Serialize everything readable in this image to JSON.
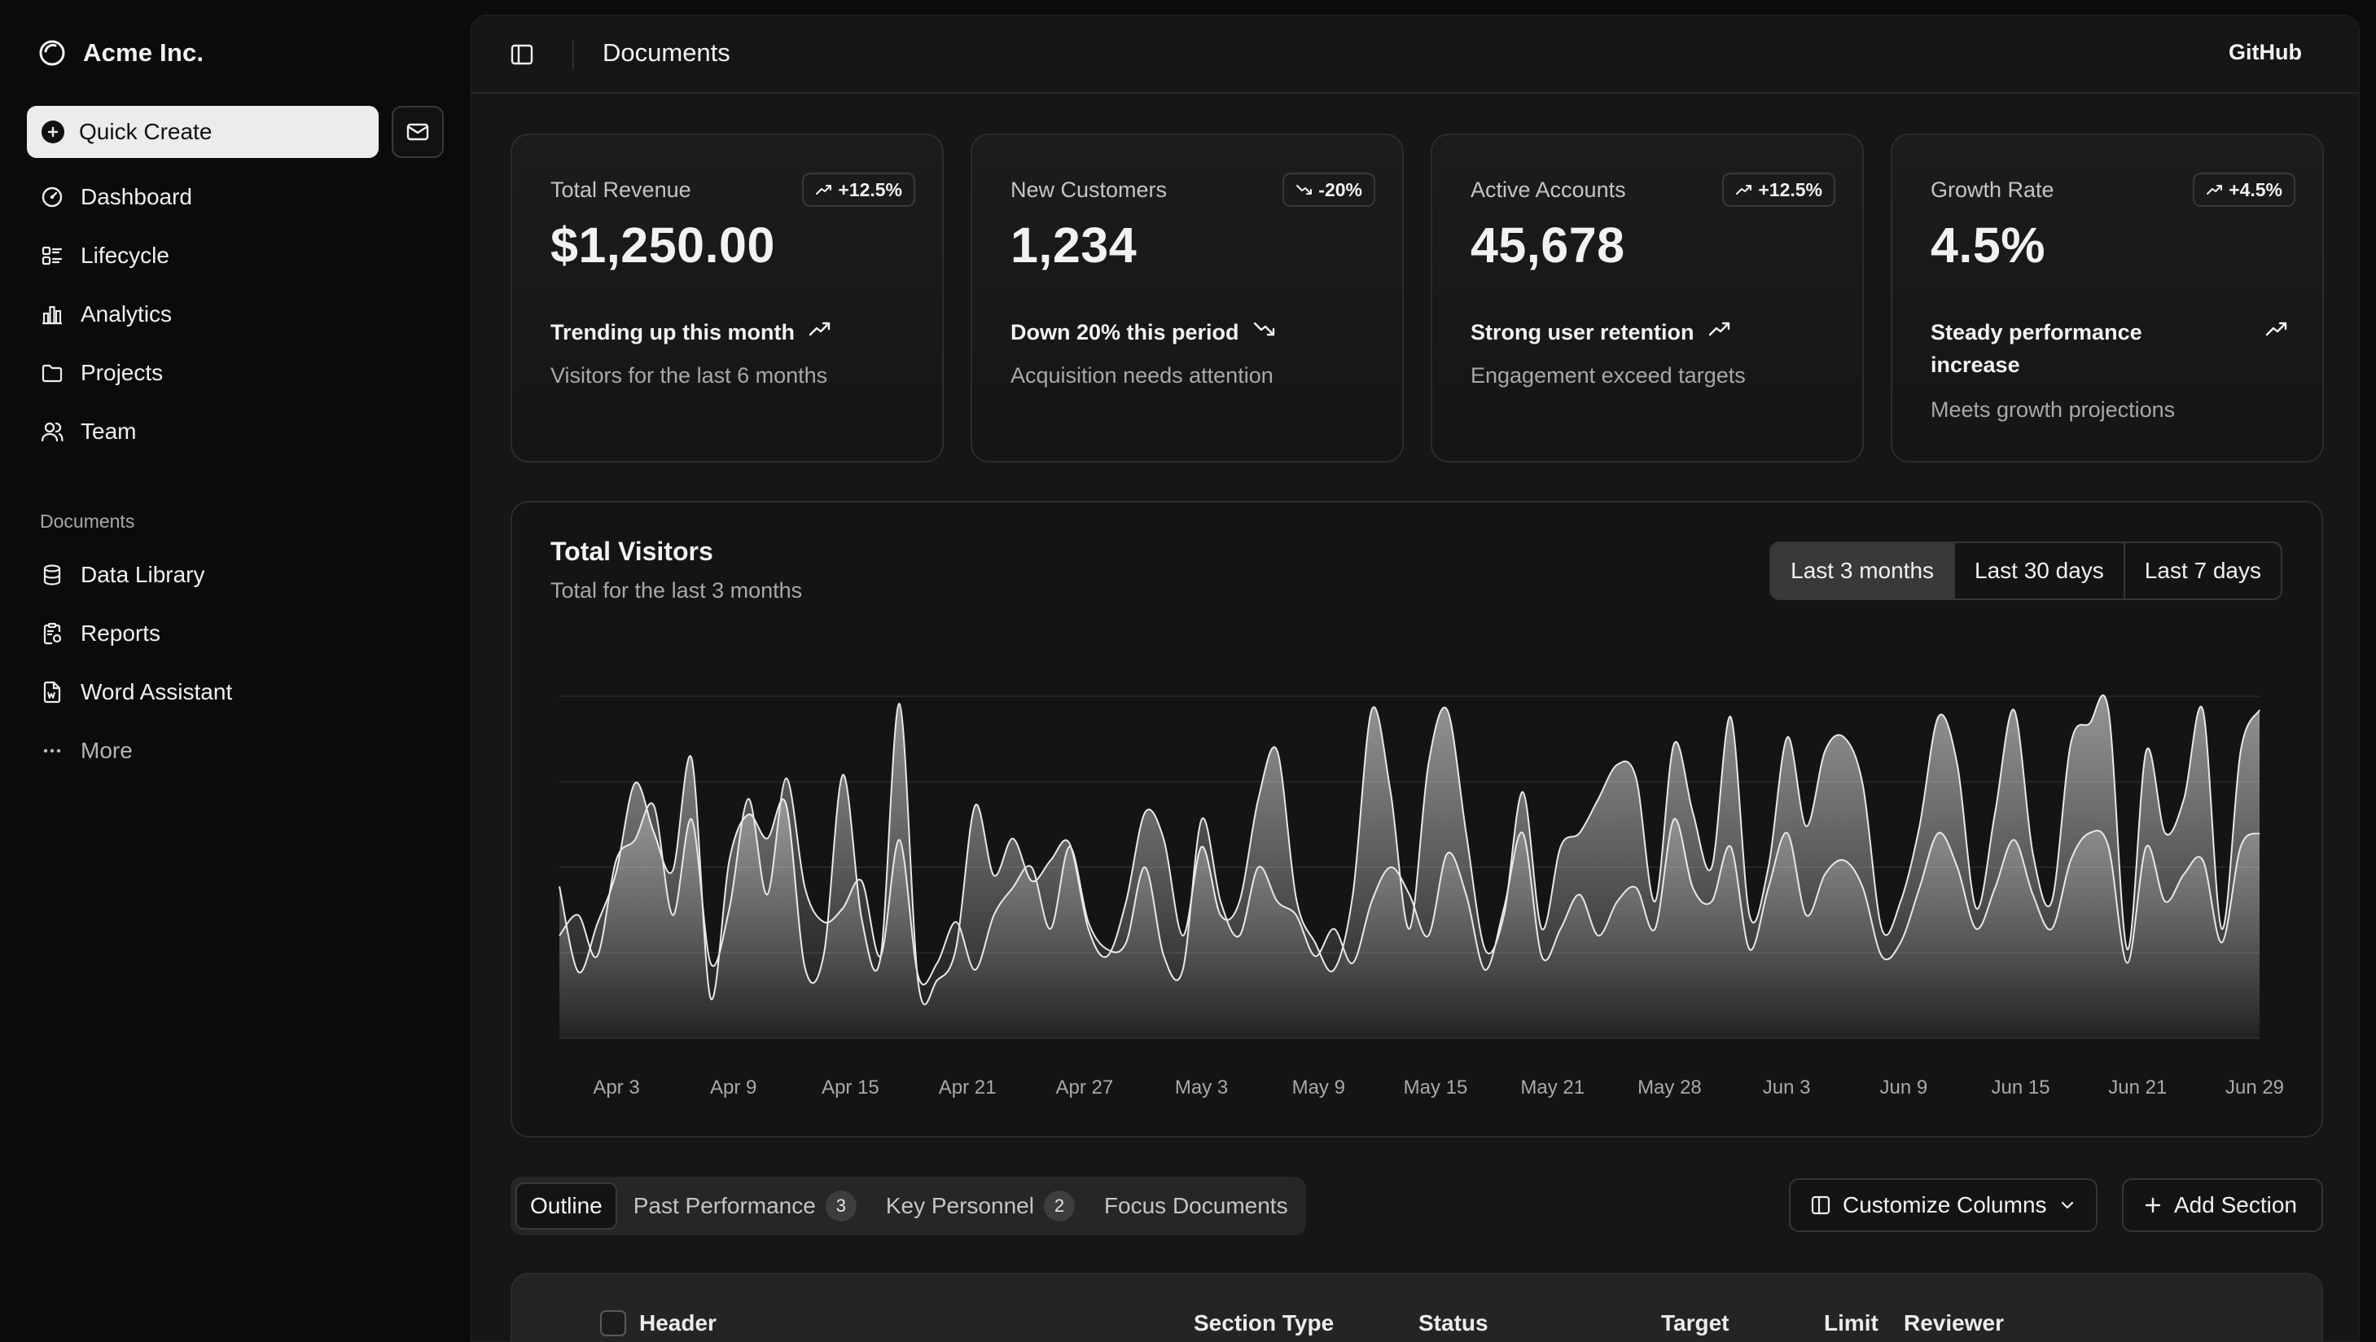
{
  "brand": {
    "name": "Acme Inc."
  },
  "sidebar": {
    "quick_create": "Quick Create",
    "items": [
      {
        "label": "Dashboard",
        "icon": "gauge-icon"
      },
      {
        "label": "Lifecycle",
        "icon": "list-details-icon"
      },
      {
        "label": "Analytics",
        "icon": "chart-bar-icon"
      },
      {
        "label": "Projects",
        "icon": "folder-icon"
      },
      {
        "label": "Team",
        "icon": "users-icon"
      }
    ],
    "documents_title": "Documents",
    "documents": [
      {
        "label": "Data Library",
        "icon": "database-icon"
      },
      {
        "label": "Reports",
        "icon": "report-icon"
      },
      {
        "label": "Word Assistant",
        "icon": "file-word-icon"
      },
      {
        "label": "More",
        "icon": "dots-icon"
      }
    ]
  },
  "header": {
    "title": "Documents",
    "github": "GitHub"
  },
  "cards": [
    {
      "title": "Total Revenue",
      "badge": "+12.5%",
      "trend": "up",
      "value": "$1,250.00",
      "footer": "Trending up this month",
      "sub": "Visitors for the last 6 months"
    },
    {
      "title": "New Customers",
      "badge": "-20%",
      "trend": "down",
      "value": "1,234",
      "footer": "Down 20% this period",
      "sub": "Acquisition needs attention"
    },
    {
      "title": "Active Accounts",
      "badge": "+12.5%",
      "trend": "up",
      "value": "45,678",
      "footer": "Strong user retention",
      "sub": "Engagement exceed targets"
    },
    {
      "title": "Growth Rate",
      "badge": "+4.5%",
      "trend": "up",
      "value": "4.5%",
      "footer": "Steady performance increase",
      "sub": "Meets growth projections"
    }
  ],
  "visitors": {
    "title": "Total Visitors",
    "subtitle": "Total for the last 3 months",
    "ranges": [
      "Last 3 months",
      "Last 30 days",
      "Last 7 days"
    ],
    "active_range": "Last 3 months"
  },
  "chart_data": {
    "type": "area",
    "x_tick_labels": [
      "Apr 3",
      "Apr 9",
      "Apr 15",
      "Apr 21",
      "Apr 27",
      "May 3",
      "May 9",
      "May 15",
      "May 21",
      "May 28",
      "Jun 3",
      "Jun 9",
      "Jun 15",
      "Jun 21",
      "Jun 29"
    ],
    "grid": "horizontal",
    "ylim": [
      0,
      500
    ],
    "series": [
      {
        "values": [
          222,
          97,
          167,
          242,
          373,
          301,
          245,
          409,
          59,
          261,
          327,
          292,
          342,
          103,
          123,
          385,
          175,
          118,
          489,
          80,
          85,
          132,
          340,
          238,
          292,
          230,
          260,
          285,
          160,
          120,
          200,
          330,
          290,
          150,
          280,
          180,
          200,
          350,
          420,
          205,
          140,
          100,
          210,
          480,
          360,
          160,
          400,
          480,
          300,
          130,
          180,
          360,
          160,
          280,
          300,
          350,
          400,
          380,
          200,
          430,
          330,
          250,
          470,
          180,
          250,
          440,
          310,
          420,
          440,
          370,
          160,
          200,
          310,
          470,
          400,
          190,
          330,
          480,
          270,
          200,
          430,
          460,
          480,
          130,
          420,
          300,
          350,
          480,
          160,
          420,
          480
        ]
      },
      {
        "values": [
          150,
          180,
          120,
          260,
          290,
          340,
          180,
          320,
          110,
          190,
          350,
          210,
          380,
          220,
          170,
          190,
          230,
          120,
          290,
          90,
          110,
          170,
          100,
          180,
          220,
          250,
          160,
          280,
          170,
          130,
          140,
          250,
          120,
          100,
          320,
          200,
          150,
          250,
          200,
          180,
          120,
          160,
          110,
          200,
          250,
          210,
          150,
          270,
          210,
          100,
          190,
          300,
          120,
          160,
          210,
          150,
          200,
          220,
          160,
          320,
          220,
          200,
          280,
          130,
          220,
          300,
          180,
          240,
          260,
          220,
          120,
          140,
          220,
          300,
          250,
          160,
          220,
          290,
          210,
          160,
          260,
          300,
          280,
          110,
          280,
          200,
          240,
          260,
          140,
          280,
          300
        ]
      }
    ]
  },
  "tabs": [
    {
      "label": "Outline",
      "count": ""
    },
    {
      "label": "Past Performance",
      "count": "3"
    },
    {
      "label": "Key Personnel",
      "count": "2"
    },
    {
      "label": "Focus Documents",
      "count": ""
    }
  ],
  "actions": {
    "customize": "Customize Columns",
    "add_section": "Add Section"
  },
  "table": {
    "columns": [
      "Header",
      "Section Type",
      "Status",
      "Target",
      "Limit",
      "Reviewer"
    ]
  }
}
